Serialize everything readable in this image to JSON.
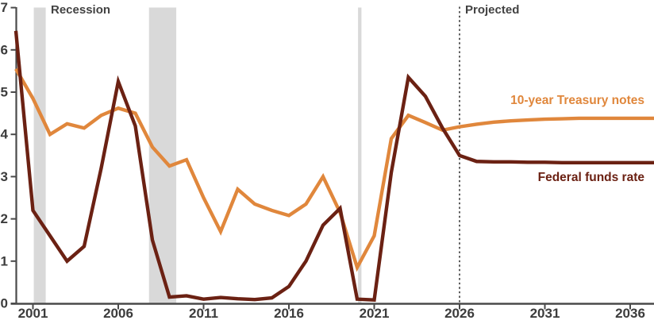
{
  "chart_data": {
    "type": "line",
    "title": "",
    "xlabel": "",
    "ylabel": "",
    "x": [
      2000,
      2001,
      2002,
      2003,
      2004,
      2005,
      2006,
      2007,
      2008,
      2009,
      2010,
      2011,
      2012,
      2013,
      2014,
      2015,
      2016,
      2017,
      2018,
      2019,
      2020,
      2021,
      2022,
      2023,
      2024,
      2025,
      2026,
      2027,
      2028,
      2029,
      2030,
      2031,
      2032,
      2033,
      2034,
      2035,
      2036
    ],
    "series": [
      {
        "name": "10-year Treasury notes",
        "color": "#E0873C",
        "values": [
          5.55,
          4.85,
          4.0,
          4.25,
          4.15,
          4.45,
          4.62,
          4.5,
          3.7,
          3.25,
          3.4,
          2.5,
          1.7,
          2.7,
          2.35,
          2.2,
          2.08,
          2.35,
          3.0,
          2.15,
          0.85,
          1.6,
          3.9,
          4.45,
          4.28,
          4.1,
          4.18,
          4.24,
          4.29,
          4.32,
          4.34,
          4.36,
          4.37,
          4.38,
          4.38,
          4.38,
          4.38
        ]
      },
      {
        "name": "Federal funds rate",
        "color": "#6B2113",
        "values": [
          6.45,
          2.2,
          1.6,
          1.0,
          1.35,
          3.2,
          5.25,
          4.2,
          1.5,
          0.15,
          0.18,
          0.1,
          0.14,
          0.11,
          0.09,
          0.13,
          0.4,
          1.0,
          1.85,
          2.25,
          0.1,
          0.08,
          3.1,
          5.35,
          4.9,
          4.15,
          3.5,
          3.36,
          3.35,
          3.35,
          3.34,
          3.34,
          3.33,
          3.33,
          3.33,
          3.33,
          3.33
        ]
      }
    ],
    "ylim": [
      0,
      7
    ],
    "yticks": [
      0,
      1,
      2,
      3,
      4,
      5,
      6,
      7
    ],
    "xticks": [
      2001,
      2006,
      2011,
      2016,
      2021,
      2026,
      2031,
      2036
    ],
    "xlim": [
      2000,
      2037.4
    ],
    "grid": false,
    "legend": "inline-labels",
    "annotations": {
      "recession_label": "Recession",
      "projected_label": "Projected",
      "projected_start_year": 2026,
      "recession_bands": [
        [
          2001.05,
          2001.75
        ],
        [
          2007.8,
          2009.4
        ],
        [
          2020.05,
          2020.25
        ]
      ]
    },
    "colors": {
      "recession_band": "#D9D9D9",
      "axis": "#4A4A4A",
      "tick_labels": "#3C3C3C",
      "projected_divider": "#4A4A4A"
    }
  }
}
